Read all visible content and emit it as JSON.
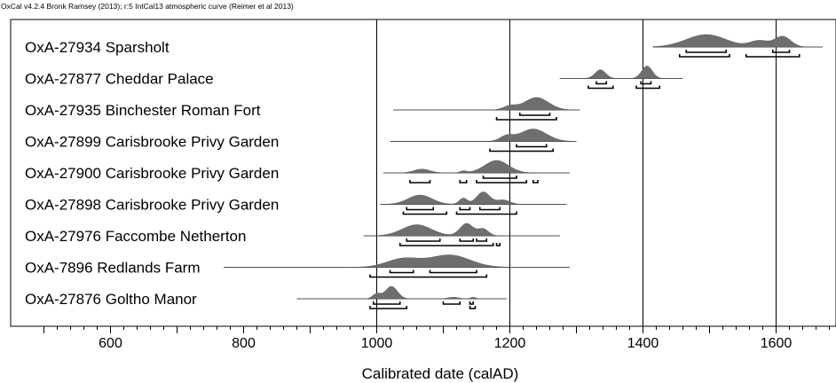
{
  "header_text": "OxCal v4.2.4 Bronk Ramsey (2013); r:5 IntCal13 atmospheric curve (Reimer et al 2013)",
  "chart_data": {
    "type": "density",
    "xlabel": "Calibrated date (calAD)",
    "xlim": [
      450,
      1690
    ],
    "x_ticks": [
      600,
      800,
      1000,
      1200,
      1400,
      1600
    ],
    "x_tick_labels": [
      "600",
      "800",
      "1000",
      "1200",
      "1400",
      "1600"
    ],
    "vertical_gridlines": [
      1000,
      1200,
      1400,
      1600
    ],
    "grid": true,
    "colors": {
      "fill": "#6e6e6e",
      "line": "#000000"
    },
    "samples": [
      {
        "label": "OxA-27934 Sparsholt",
        "range": [
          1415,
          1670
        ],
        "peaks": [
          [
            1495,
            30,
            1.0
          ],
          [
            1575,
            14,
            0.5
          ],
          [
            1610,
            12,
            0.85
          ]
        ],
        "hpd68": [
          [
            1465,
            1525
          ],
          [
            1595,
            1620
          ]
        ],
        "hpd95": [
          [
            1455,
            1530
          ],
          [
            1555,
            1635
          ]
        ]
      },
      {
        "label": "OxA-27877 Cheddar Palace",
        "range": [
          1275,
          1460
        ],
        "peaks": [
          [
            1336,
            8,
            0.7
          ],
          [
            1406,
            8,
            1.0
          ]
        ],
        "hpd68": [
          [
            1330,
            1345
          ],
          [
            1397,
            1412
          ]
        ],
        "hpd95": [
          [
            1318,
            1355
          ],
          [
            1390,
            1425
          ]
        ]
      },
      {
        "label": "OxA-27935 Binchester Roman Fort",
        "range": [
          1025,
          1305
        ],
        "peaks": [
          [
            1240,
            18,
            1.0
          ],
          [
            1200,
            10,
            0.3
          ]
        ],
        "hpd68": [
          [
            1215,
            1260
          ]
        ],
        "hpd95": [
          [
            1180,
            1270
          ]
        ]
      },
      {
        "label": "OxA-27899 Carisbrooke Privy Garden",
        "range": [
          1020,
          1300
        ],
        "peaks": [
          [
            1235,
            20,
            1.0
          ],
          [
            1195,
            10,
            0.4
          ]
        ],
        "hpd68": [
          [
            1210,
            1255
          ]
        ],
        "hpd95": [
          [
            1170,
            1265
          ]
        ]
      },
      {
        "label": "OxA-27900 Carisbrooke Privy Garden",
        "range": [
          1010,
          1290
        ],
        "peaks": [
          [
            1068,
            12,
            0.3
          ],
          [
            1130,
            5,
            0.15
          ],
          [
            1180,
            18,
            1.0
          ]
        ],
        "hpd68": [
          [
            1160,
            1210
          ]
        ],
        "hpd95": [
          [
            1050,
            1080
          ],
          [
            1125,
            1135
          ],
          [
            1150,
            1225
          ],
          [
            1235,
            1242
          ]
        ]
      },
      {
        "label": "OxA-27898 Carisbrooke Privy Garden",
        "range": [
          1005,
          1285
        ],
        "peaks": [
          [
            1065,
            18,
            0.75
          ],
          [
            1130,
            6,
            0.5
          ],
          [
            1160,
            10,
            1.0
          ],
          [
            1190,
            10,
            0.35
          ]
        ],
        "hpd68": [
          [
            1045,
            1085
          ],
          [
            1125,
            1140
          ],
          [
            1155,
            1185
          ]
        ],
        "hpd95": [
          [
            1040,
            1105
          ],
          [
            1120,
            1210
          ]
        ]
      },
      {
        "label": "OxA-27976 Faccombe Netherton",
        "range": [
          980,
          1275
        ],
        "peaks": [
          [
            1060,
            22,
            0.9
          ],
          [
            1135,
            10,
            1.0
          ],
          [
            1160,
            8,
            0.55
          ]
        ],
        "hpd68": [
          [
            1045,
            1095
          ],
          [
            1125,
            1145
          ],
          [
            1150,
            1165
          ]
        ],
        "hpd95": [
          [
            1035,
            1175
          ],
          [
            1180,
            1185
          ]
        ]
      },
      {
        "label": "OxA-7896 Redlands Farm",
        "range": [
          770,
          1290
        ],
        "peaks": [
          [
            1040,
            25,
            0.7
          ],
          [
            1110,
            30,
            1.0
          ]
        ],
        "hpd68": [
          [
            1020,
            1055
          ],
          [
            1080,
            1150
          ]
        ],
        "hpd95": [
          [
            990,
            1165
          ]
        ]
      },
      {
        "label": "OxA-27876 Goltho Manor",
        "range": [
          880,
          1195
        ],
        "peaks": [
          [
            1022,
            9,
            1.0
          ],
          [
            1000,
            6,
            0.4
          ],
          [
            1115,
            8,
            0.12
          ],
          [
            1145,
            4,
            0.12
          ]
        ],
        "hpd68": [
          [
            995,
            1035
          ],
          [
            1100,
            1125
          ],
          [
            1140,
            1145
          ]
        ],
        "hpd95": [
          [
            990,
            1045
          ],
          [
            1140,
            1148
          ]
        ]
      }
    ]
  }
}
